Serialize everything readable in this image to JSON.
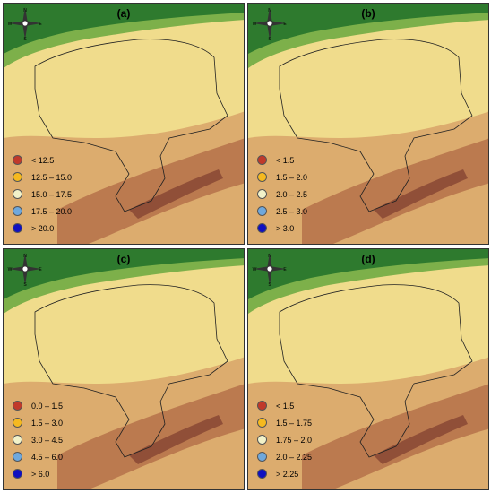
{
  "panels": [
    {
      "label": "(a)",
      "legend": [
        {
          "text": "< 12.5",
          "color": "#c0392b"
        },
        {
          "text": "12.5 – 15.0",
          "color": "#f5b91f"
        },
        {
          "text": "15.0 – 17.5",
          "color": "#f2f2c9"
        },
        {
          "text": "17.5 – 20.0",
          "color": "#6fa8dc"
        },
        {
          "text": "> 20.0",
          "color": "#1010c0"
        }
      ]
    },
    {
      "label": "(b)",
      "legend": [
        {
          "text": "< 1.5",
          "color": "#c0392b"
        },
        {
          "text": "1.5 – 2.0",
          "color": "#f5b91f"
        },
        {
          "text": "2.0 – 2.5",
          "color": "#f2f2c9"
        },
        {
          "text": "2.5 – 3.0",
          "color": "#6fa8dc"
        },
        {
          "text": "> 3.0",
          "color": "#1010c0"
        }
      ]
    },
    {
      "label": "(c)",
      "legend": [
        {
          "text": "0.0 – 1.5",
          "color": "#c0392b"
        },
        {
          "text": "1.5 – 3.0",
          "color": "#f5b91f"
        },
        {
          "text": "3.0 – 4.5",
          "color": "#f2f2c9"
        },
        {
          "text": "4.5 – 6.0",
          "color": "#6fa8dc"
        },
        {
          "text": "> 6.0",
          "color": "#1010c0"
        }
      ]
    },
    {
      "label": "(d)",
      "legend": [
        {
          "text": "< 1.5",
          "color": "#c0392b"
        },
        {
          "text": "1.5 – 1.75",
          "color": "#f5b91f"
        },
        {
          "text": "1.75 – 2.0",
          "color": "#f2f2c9"
        },
        {
          "text": "2.0 – 2.25",
          "color": "#6fa8dc"
        },
        {
          "text": "> 2.25",
          "color": "#1010c0"
        }
      ]
    }
  ],
  "compass": {
    "n": "N",
    "s": "S",
    "e": "E",
    "w": "W"
  },
  "colors": {
    "sea": "#2e7a2e",
    "coast": "#7db04a",
    "plain": "#f0dc8c",
    "highland": "#d9a66a",
    "mountain": "#b5714a",
    "peak": "#8c4a35"
  }
}
